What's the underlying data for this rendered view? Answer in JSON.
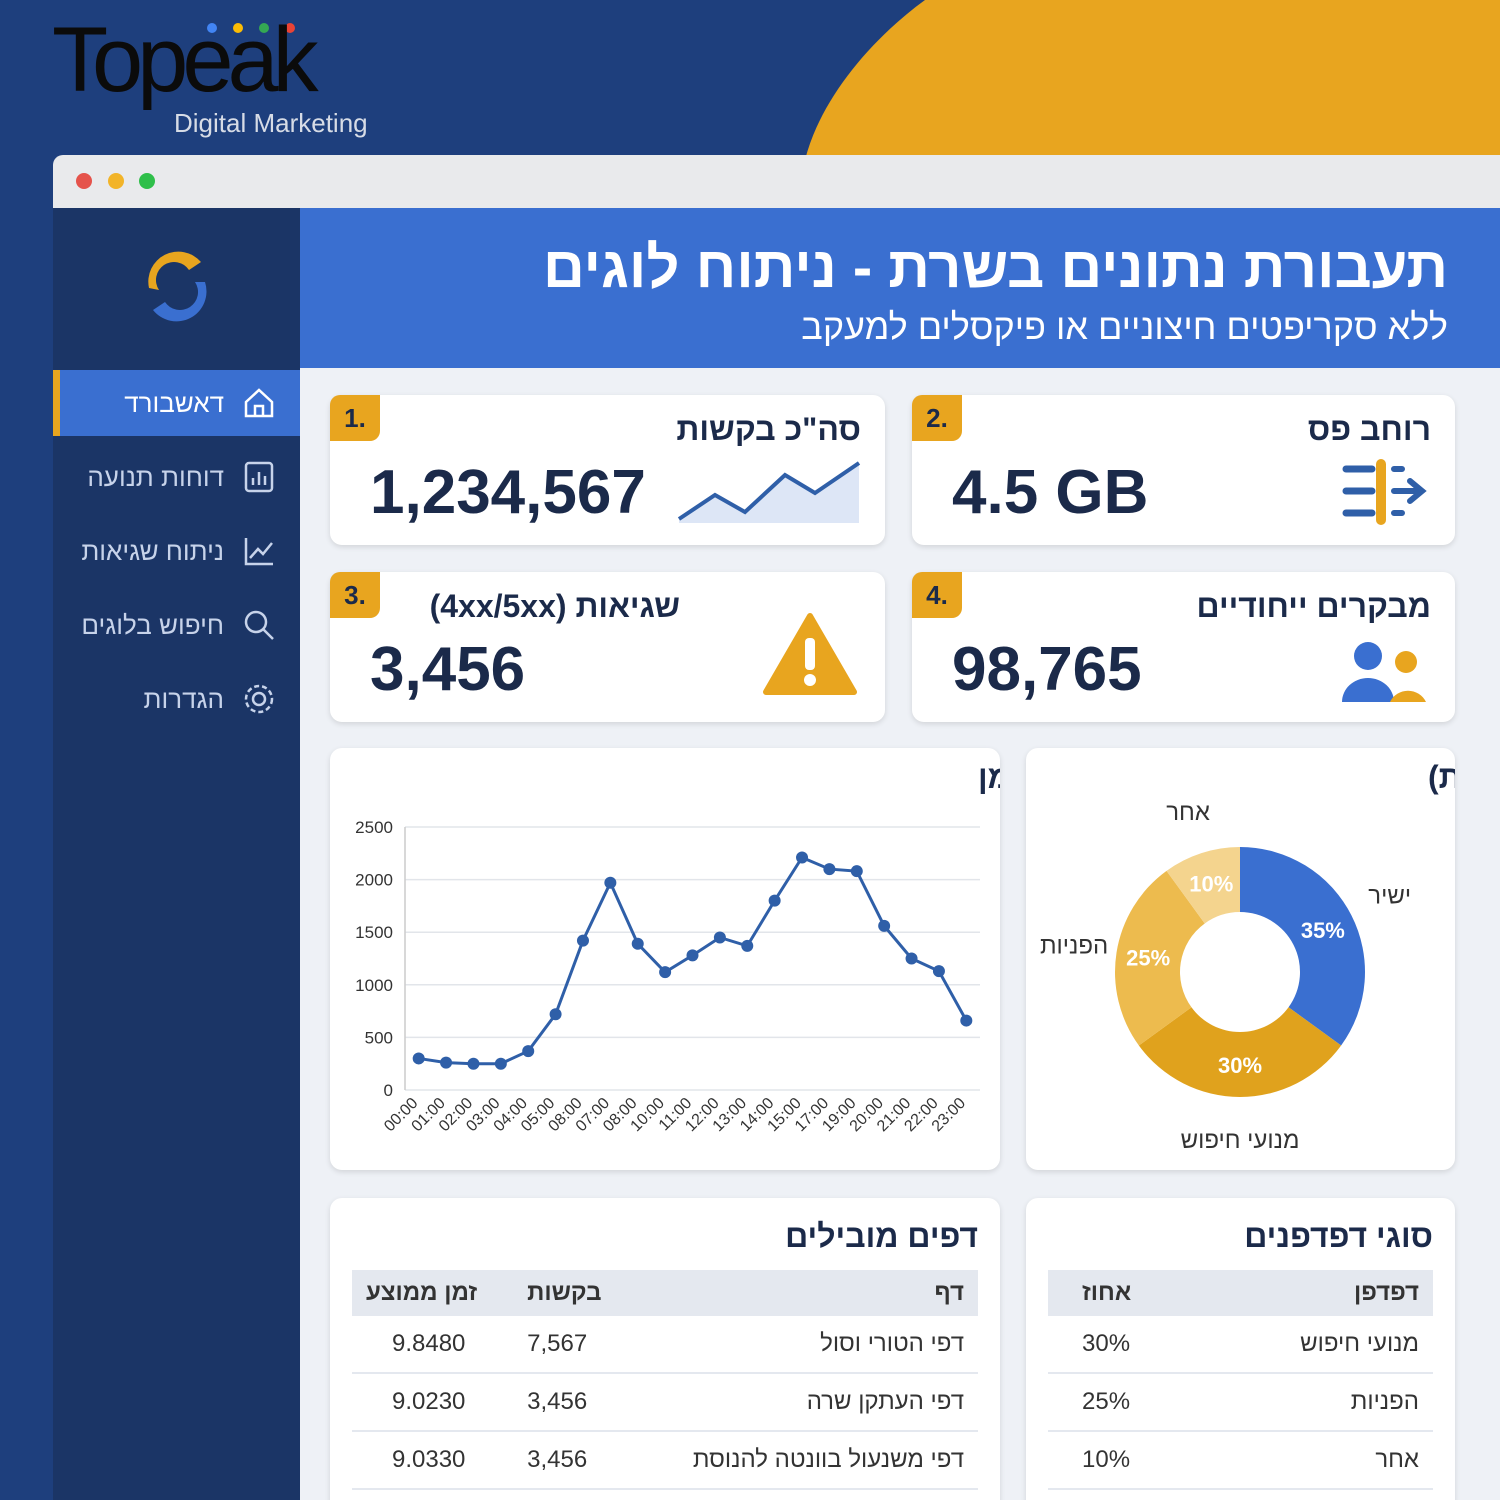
{
  "logo": {
    "name": "Topeak",
    "tagline": "Digital Marketing"
  },
  "sidebar": [
    "דאשבורד",
    "דוחות תנועה",
    "ניתוח שגיאות",
    "חיפוש בלוגים",
    "הגדרות"
  ],
  "header": {
    "title": "תעבורת נתונים בשרת - ניתוח לוגים",
    "subtitle": "ללא סקריפטים חיצוניים או פיקסלים למעקב"
  },
  "kpis": [
    {
      "number": "1.",
      "label": "סה\"כ בקשות",
      "value": "1,234,567"
    },
    {
      "number": "2.",
      "label": "רוחב פס",
      "value": "4.5 GB"
    },
    {
      "number": "3.",
      "label": "שגיאות (4xx/5xx)",
      "value": "3,456"
    },
    {
      "number": "4.",
      "label": "מבקרים ייחודיים",
      "value": "98,765"
    }
  ],
  "chart_data": [
    {
      "type": "line",
      "title": "תעבורה לאורך זמן",
      "categories": [
        "00:00",
        "01:00",
        "02:00",
        "03:00",
        "04:00",
        "05:00",
        "08:00",
        "07:00",
        "08:00",
        "10:00",
        "11:00",
        "12:00",
        "13:00",
        "14:00",
        "15:00",
        "17:00",
        "19:00",
        "20:00",
        "21:00",
        "22:00",
        "23:00"
      ],
      "values": [
        300,
        260,
        250,
        250,
        370,
        720,
        1420,
        1970,
        1390,
        1120,
        1280,
        1450,
        1370,
        1800,
        2210,
        2100,
        2080,
        1560,
        1250,
        1130,
        660
      ],
      "color": "#2f5fa8",
      "ylim": [
        0,
        2500
      ],
      "yticks": [
        0,
        500,
        1000,
        1500,
        2000,
        2500
      ],
      "grid": true
    },
    {
      "type": "pie",
      "title": "מקורות תנועה (לוג שרת)",
      "categories": [
        "ישיר",
        "מנועי חיפוש",
        "הפניות",
        "אחר"
      ],
      "values": [
        35,
        30,
        25,
        10
      ],
      "value_labels": [
        "35%",
        "30%",
        "25%",
        "10%"
      ],
      "colors": [
        "#3a6fd0",
        "#e0a21d",
        "#edbb4e",
        "#f4d48e"
      ]
    }
  ],
  "tables": [
    {
      "title": "דפים מובילים",
      "columns": [
        "דף",
        "בקשות",
        "זמן ממוצע"
      ],
      "rows": [
        [
          "דפי הטורי וסול",
          "7,567",
          "9.8480"
        ],
        [
          "דפי העתקן שרה",
          "3,456",
          "9.0230"
        ],
        [
          "דפי משנעול בוונטה להנוסת",
          "3,456",
          "9.0330"
        ]
      ]
    },
    {
      "title": "סוגי דפדפנים",
      "columns": [
        "דפדפן",
        "אחוז"
      ],
      "rows": [
        [
          "מנועי חיפוש",
          "30%"
        ],
        [
          "הפניות",
          "25%"
        ],
        [
          "אחר",
          "10%"
        ]
      ]
    }
  ]
}
